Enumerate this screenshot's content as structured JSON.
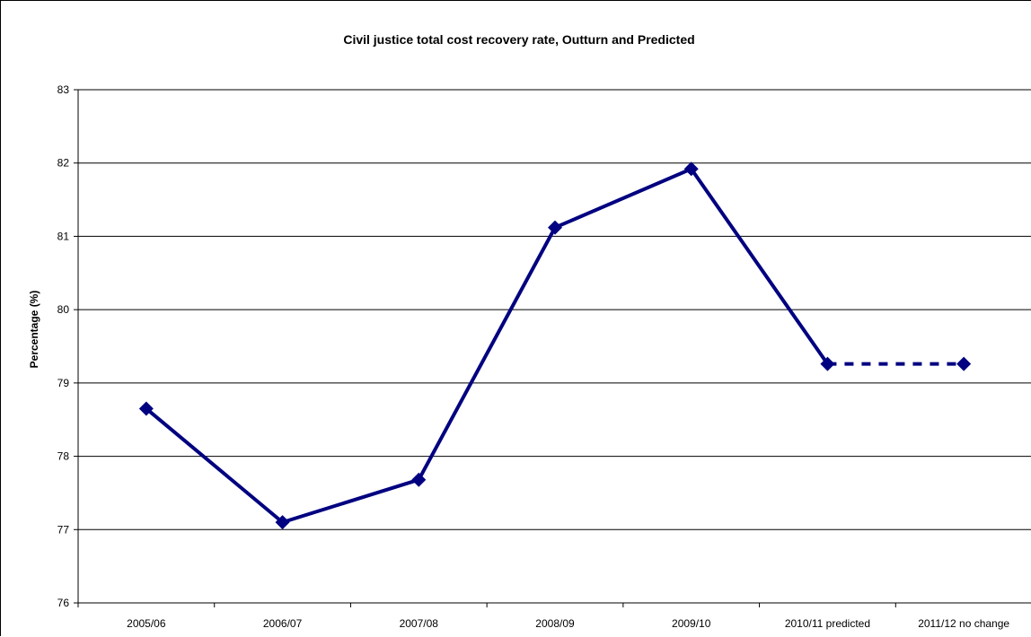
{
  "chart_data": {
    "type": "line",
    "title": "Civil justice total cost recovery rate, Outturn and Predicted",
    "xlabel": "",
    "ylabel": "Percentage (%)",
    "categories": [
      "2005/06",
      "2006/07",
      "2007/08",
      "2008/09",
      "2009/10",
      "2010/11 predicted",
      "2011/12 no change"
    ],
    "ylim": [
      76,
      83
    ],
    "yticks": [
      76,
      77,
      78,
      79,
      80,
      81,
      82,
      83
    ],
    "grid": true,
    "legend": "none",
    "series": [
      {
        "values": [
          78.65,
          77.1,
          77.68,
          81.12,
          81.92,
          79.26,
          79.26
        ],
        "color": "#000080",
        "marker": "diamond",
        "line_style": "solid",
        "dashed_from_index": 5
      }
    ]
  }
}
